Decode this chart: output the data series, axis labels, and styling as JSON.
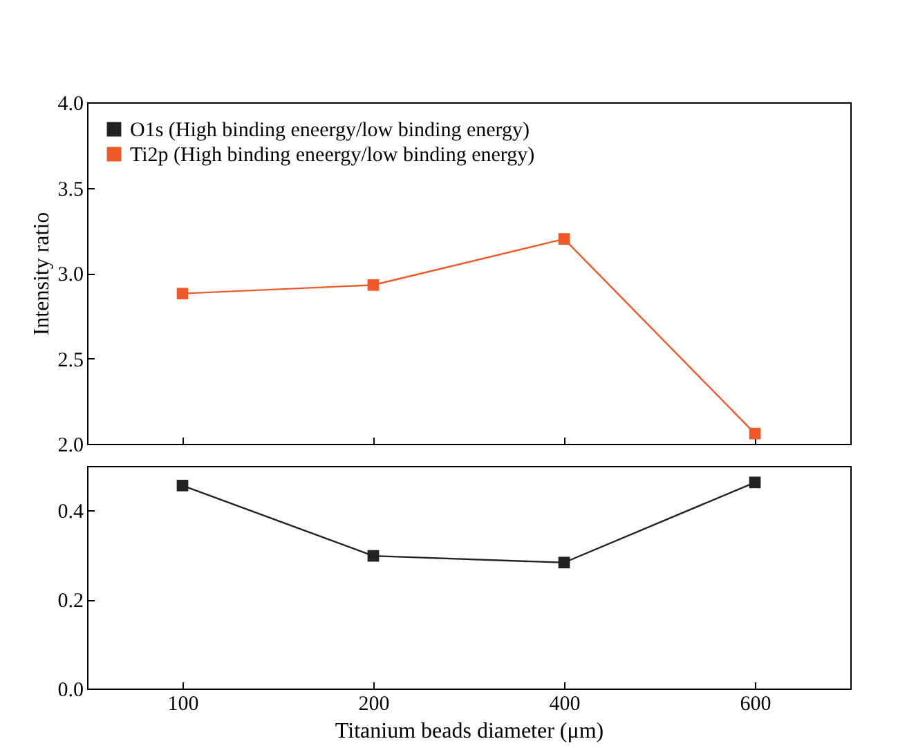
{
  "chart_data": [
    {
      "type": "line",
      "categories": [
        "100",
        "200",
        "400",
        "600"
      ],
      "ylabel": "Intensity ratio",
      "ylim": [
        2.0,
        4.0
      ],
      "yticks": [
        {
          "value": 2,
          "label": "2.0"
        },
        {
          "value": 2.5,
          "label": "2.5"
        },
        {
          "value": 3,
          "label": "3.0"
        },
        {
          "value": 3.5,
          "label": "3.5"
        },
        {
          "value": 4,
          "label": "4.0"
        }
      ],
      "tick_labels": "y",
      "legend": "top left",
      "marker": "square",
      "grid": false,
      "series": [
        {
          "name": "Ti2p (High binding eneergy/low binding energy)",
          "color": "#f05a28",
          "values": [
            2.88,
            2.93,
            3.2,
            2.06
          ]
        }
      ]
    },
    {
      "type": "line",
      "categories": [
        "100",
        "200",
        "400",
        "600"
      ],
      "xlabel": "Titanium beads diameter (μm)",
      "ylim": [
        0,
        0.5
      ],
      "yticks": [
        {
          "value": 0,
          "label": "0.0"
        },
        {
          "value": 0.2,
          "label": "0.2"
        },
        {
          "value": 0.4,
          "label": "0.4"
        }
      ],
      "marker": "square",
      "grid": false,
      "series": [
        {
          "name": "O1s (High binding eneergy/low binding energy)",
          "color": "#222222",
          "values": [
            0.456,
            0.298,
            0.283,
            0.463
          ]
        }
      ]
    }
  ]
}
